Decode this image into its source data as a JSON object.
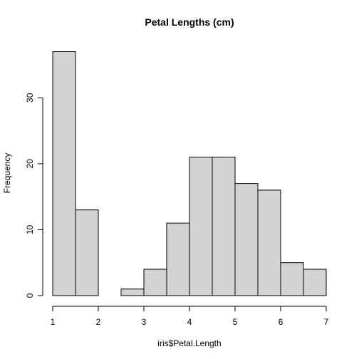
{
  "chart_data": {
    "type": "bar",
    "title": "Petal Lengths (cm)",
    "xlabel": "iris$Petal.Length",
    "ylabel": "Frequency",
    "bins": [
      {
        "x0": 1.0,
        "x1": 1.5,
        "count": 37
      },
      {
        "x0": 1.5,
        "x1": 2.0,
        "count": 13
      },
      {
        "x0": 2.0,
        "x1": 2.5,
        "count": 0
      },
      {
        "x0": 2.5,
        "x1": 3.0,
        "count": 1
      },
      {
        "x0": 3.0,
        "x1": 3.5,
        "count": 4
      },
      {
        "x0": 3.5,
        "x1": 4.0,
        "count": 11
      },
      {
        "x0": 4.0,
        "x1": 4.5,
        "count": 21
      },
      {
        "x0": 4.5,
        "x1": 5.0,
        "count": 21
      },
      {
        "x0": 5.0,
        "x1": 5.5,
        "count": 17
      },
      {
        "x0": 5.5,
        "x1": 6.0,
        "count": 16
      },
      {
        "x0": 6.0,
        "x1": 6.5,
        "count": 5
      },
      {
        "x0": 6.5,
        "x1": 7.0,
        "count": 4
      }
    ],
    "xlim": [
      1,
      7
    ],
    "ylim": [
      0,
      37
    ],
    "x_ticks": [
      1,
      2,
      3,
      4,
      5,
      6,
      7
    ],
    "y_ticks": [
      0,
      10,
      20,
      30
    ],
    "grid": false,
    "bar_color": "#d3d3d3",
    "edge_color": "#000000"
  }
}
